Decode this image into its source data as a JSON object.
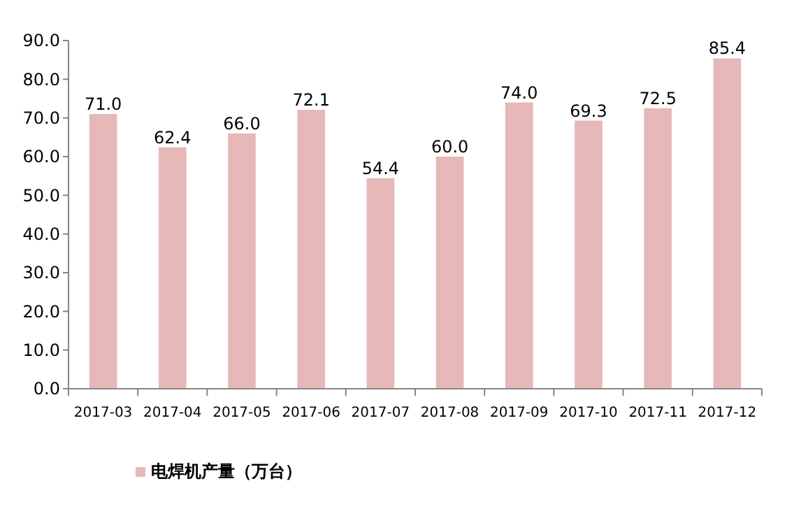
{
  "chart_data": {
    "type": "bar",
    "categories": [
      "2017-03",
      "2017-04",
      "2017-05",
      "2017-06",
      "2017-07",
      "2017-08",
      "2017-09",
      "2017-10",
      "2017-11",
      "2017-12"
    ],
    "series": [
      {
        "name": "电焊机产量（万台）",
        "color": "#e6b8b7",
        "values": [
          71.0,
          62.4,
          66.0,
          72.1,
          54.4,
          60.0,
          74.0,
          69.3,
          72.5,
          85.4
        ],
        "value_labels": [
          "71.0",
          "62.4",
          "66.0",
          "72.1",
          "54.4",
          "60.0",
          "74.0",
          "69.3",
          "72.5",
          "85.4"
        ]
      }
    ],
    "ylim": [
      0,
      90
    ],
    "yticks": [
      {
        "value": 0,
        "label": "0.0"
      },
      {
        "value": 10,
        "label": "10.0"
      },
      {
        "value": 20,
        "label": "20.0"
      },
      {
        "value": 30,
        "label": "30.0"
      },
      {
        "value": 40,
        "label": "40.0"
      },
      {
        "value": 50,
        "label": "50.0"
      },
      {
        "value": 60,
        "label": "60.0"
      },
      {
        "value": 70,
        "label": "70.0"
      },
      {
        "value": 80,
        "label": "80.0"
      },
      {
        "value": 90,
        "label": "90.0"
      }
    ],
    "grid": false,
    "legend": "bottom"
  }
}
